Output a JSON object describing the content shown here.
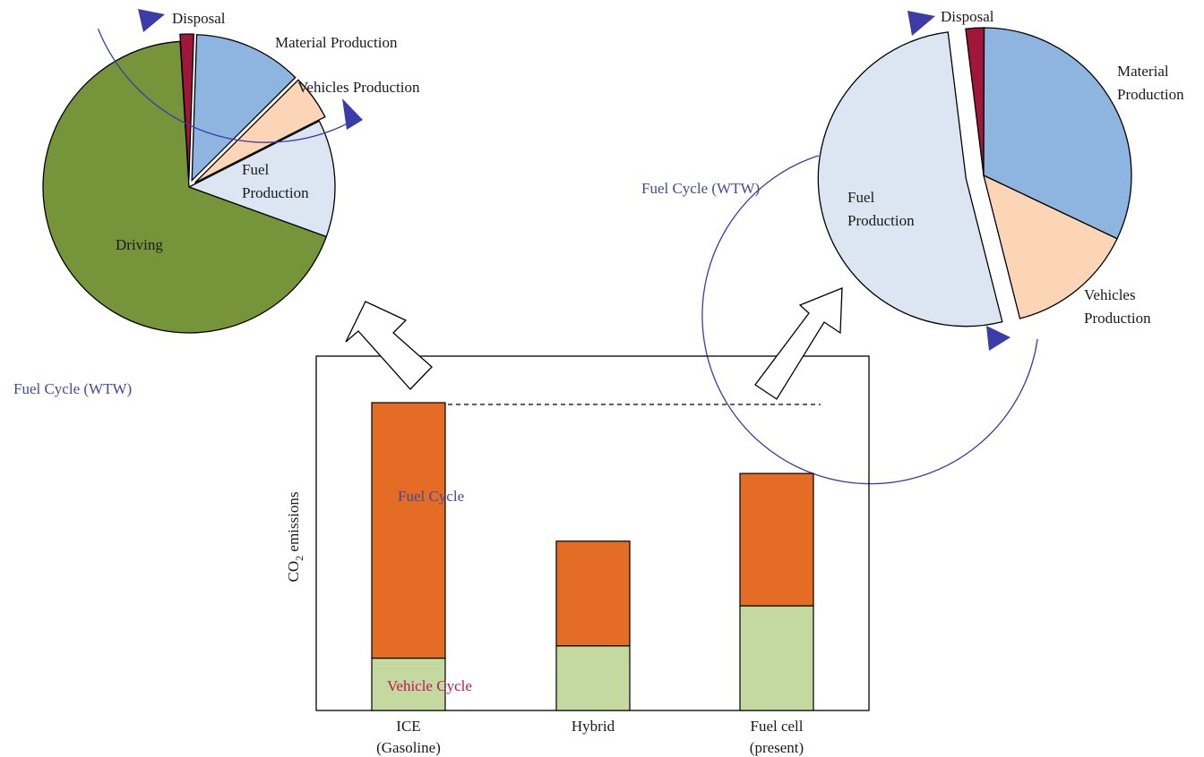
{
  "colors": {
    "driving": "#76953a",
    "fuel_production": "#dce6f2",
    "vehicles_production": "#fbd5b5",
    "material_production": "#8eb4e0",
    "disposal": "#a0173a",
    "fuel_cycle_bar": "#e46c24",
    "vehicle_cycle_bar": "#c3d9a0",
    "cycle_arrow": "#3c3ca8",
    "fuel_cycle_text": "#3f4aa0",
    "vehicle_cycle_text": "#c0184e"
  },
  "chart_data": [
    {
      "type": "pie",
      "id": "left-pie",
      "slices": [
        {
          "label": "Disposal",
          "value": 1.5
        },
        {
          "label": "Material Production",
          "value": 12
        },
        {
          "label": "Vehicles Production",
          "value": 5
        },
        {
          "label": "Fuel Production",
          "value": 13
        },
        {
          "label": "Driving",
          "value": 68.5
        }
      ],
      "cycle_label": "Fuel Cycle (WTW)"
    },
    {
      "type": "pie",
      "id": "right-pie",
      "slices": [
        {
          "label": "Disposal",
          "value": 2
        },
        {
          "label": "Material Production",
          "value": 32
        },
        {
          "label": "Vehicles Production",
          "value": 14
        },
        {
          "label": "Fuel Production",
          "value": 52
        }
      ],
      "cycle_label": "Fuel Cycle (WTW)"
    },
    {
      "type": "bar",
      "id": "co2-bar",
      "stacked": true,
      "categories": [
        "ICE\n(Gasoline)",
        "Hybrid",
        "Fuel cell\n(present)"
      ],
      "series": [
        {
          "name": "Vehicle Cycle",
          "values": [
            17,
            21,
            34
          ]
        },
        {
          "name": "Fuel Cycle",
          "values": [
            83,
            34,
            43
          ]
        }
      ],
      "ylabel": "CO₂ emissions",
      "ylim": [
        0,
        100
      ]
    }
  ]
}
